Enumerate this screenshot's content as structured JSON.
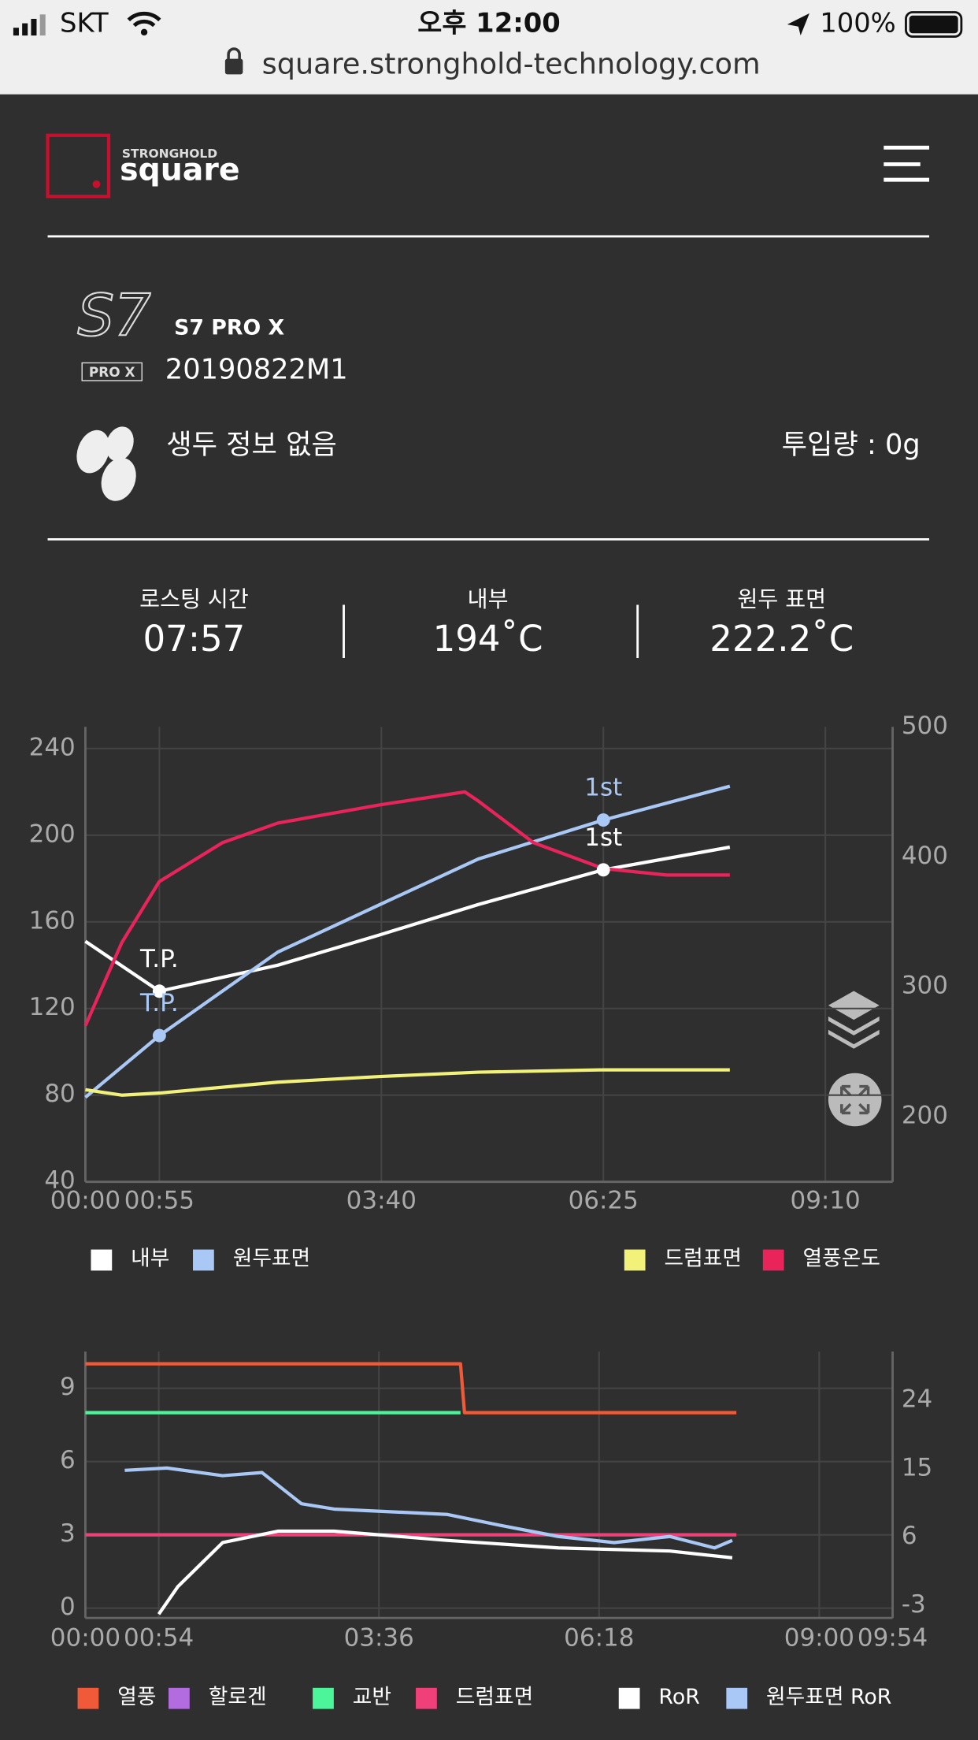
{
  "status_bar": {
    "carrier": "SKT",
    "time": "오후 12:00",
    "battery": "100%"
  },
  "browser": {
    "url": "square.stronghold-technology.com"
  },
  "header": {
    "brand_top": "STRONGHOLD",
    "brand": "square"
  },
  "device": {
    "logo": "S7",
    "logo_sub": "PRO X",
    "model": "S7 PRO X",
    "serial": "20190822M1"
  },
  "bean": {
    "info": "생두 정보 없음",
    "input": "투입량 : 0g"
  },
  "stats": [
    {
      "label": "로스팅 시간",
      "value": "07:57"
    },
    {
      "label": "내부",
      "value": "194˚C"
    },
    {
      "label": "원두 표면",
      "value": "222.2˚C"
    }
  ],
  "chart_data": [
    {
      "type": "line",
      "xlim": [
        0,
        600
      ],
      "xticks": [
        {
          "value": 0,
          "label": "00:00"
        },
        {
          "value": 55,
          "label": "00:55"
        },
        {
          "value": 220,
          "label": "03:40"
        },
        {
          "value": 385,
          "label": "06:25"
        },
        {
          "value": 550,
          "label": "09:10"
        }
      ],
      "ylim": [
        40,
        250
      ],
      "yticks": [
        40,
        80,
        120,
        160,
        200,
        240
      ],
      "y2lim": [
        150,
        500
      ],
      "y2ticks": [
        200,
        300,
        400,
        500
      ],
      "grid": true,
      "series": [
        {
          "name": "내부",
          "color": "#ffffff",
          "axis": "y",
          "x": [
            0,
            55,
            143,
            219,
            292,
            385,
            479
          ],
          "values": [
            151,
            128,
            140,
            154,
            168,
            184,
            194.5
          ]
        },
        {
          "name": "원두표면",
          "color": "#a9c8f5",
          "axis": "y",
          "x": [
            0,
            55,
            143,
            219,
            292,
            385,
            479
          ],
          "values": [
            79,
            107.5,
            146,
            168,
            189,
            207,
            222.6
          ]
        },
        {
          "name": "드럼표면",
          "color": "#f2f27a",
          "axis": "y",
          "x": [
            0,
            27,
            55,
            143,
            219,
            292,
            385,
            479
          ],
          "values": [
            82.5,
            80,
            81,
            86,
            88.6,
            90.6,
            91.7,
            91.7
          ]
        },
        {
          "name": "열풍온도",
          "color": "#e8245a",
          "axis": "y2",
          "x": [
            0,
            27,
            55,
            102,
            143,
            219,
            282,
            292,
            333,
            385,
            432,
            479
          ],
          "values": [
            270,
            334,
            381,
            411,
            426,
            440,
            450,
            443,
            411,
            391,
            386,
            386
          ]
        }
      ],
      "annotations": [
        {
          "text": "T.P.",
          "x": 55,
          "y": 128,
          "color": "#ffffff"
        },
        {
          "text": "T.P.",
          "x": 55,
          "y": 107.5,
          "color": "#a9c8f5"
        },
        {
          "text": "1st",
          "x": 385,
          "y": 207,
          "color": "#a9c8f5"
        },
        {
          "text": "1st",
          "x": 385,
          "y": 184,
          "color": "#ffffff"
        }
      ]
    },
    {
      "type": "line",
      "xlim": [
        0,
        594
      ],
      "xticks": [
        {
          "value": 0,
          "label": "00:00"
        },
        {
          "value": 54,
          "label": "00:54"
        },
        {
          "value": 216,
          "label": "03:36"
        },
        {
          "value": 378,
          "label": "06:18"
        },
        {
          "value": 540,
          "label": "09:00"
        },
        {
          "value": 594,
          "label": "09:54"
        }
      ],
      "ylim": [
        -0.4,
        10.5
      ],
      "yticks": [
        0,
        3,
        6,
        9
      ],
      "y2lim": [
        -4.6,
        30.4
      ],
      "y2ticks": [
        -3,
        6,
        15,
        24
      ],
      "grid": true,
      "series": [
        {
          "name": "열풍",
          "color": "#f05a38",
          "axis": "y",
          "x": [
            0,
            276,
            279,
            479
          ],
          "values": [
            10,
            10,
            8,
            8
          ]
        },
        {
          "name": "할로겐",
          "color": "#b36be0",
          "axis": "y",
          "x": [],
          "values": []
        },
        {
          "name": "교반",
          "color": "#4df59a",
          "axis": "y",
          "x": [
            0,
            276
          ],
          "values": [
            8,
            8
          ]
        },
        {
          "name": "드럼표면",
          "color": "#f0407a",
          "axis": "y",
          "x": [
            0,
            479
          ],
          "values": [
            3,
            3
          ]
        },
        {
          "name": "RoR",
          "color": "#ffffff",
          "axis": "y2",
          "x": [
            54,
            68,
            101,
            142,
            183,
            266,
            348,
            430,
            476
          ],
          "values": [
            -4.1,
            -0.5,
            5.3,
            6.8,
            6.8,
            5.6,
            4.6,
            4.2,
            3.3
          ]
        },
        {
          "name": "원두표면 RoR",
          "color": "#a9c8f5",
          "axis": "y2",
          "x": [
            29,
            60,
            101,
            130,
            159,
            183,
            266,
            307,
            348,
            389,
            430,
            463,
            476
          ],
          "values": [
            14.8,
            15.1,
            14.1,
            14.5,
            10.4,
            9.7,
            9.0,
            7.5,
            6.1,
            5.3,
            6.1,
            4.6,
            5.6
          ]
        }
      ]
    }
  ]
}
